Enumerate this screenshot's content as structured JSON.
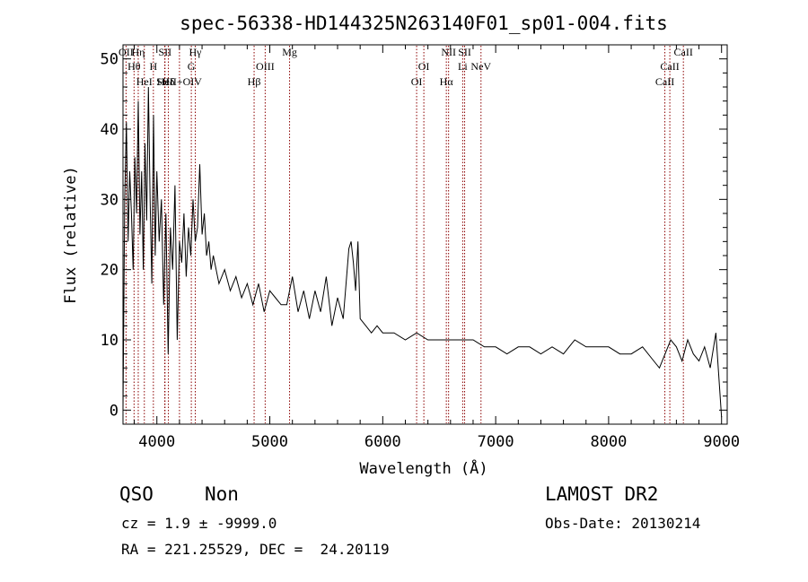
{
  "chart_data": {
    "type": "line",
    "title": "spec-56338-HD144325N263140F01_sp01-004.fits",
    "xlabel": "Wavelength (Å)",
    "ylabel": "Flux (relative)",
    "xlim": [
      3700,
      9050
    ],
    "ylim": [
      -2,
      52
    ],
    "xticks": [
      4000,
      5000,
      6000,
      7000,
      8000,
      9000
    ],
    "yticks": [
      0,
      10,
      20,
      30,
      40,
      50
    ],
    "grid": false,
    "line_color": "#000000",
    "line_marker_color": "#8b0000",
    "lines": [
      {
        "name": "OII",
        "wavelength": 3727,
        "row": 0
      },
      {
        "name": "Hη",
        "wavelength": 3835,
        "row": 0
      },
      {
        "name": "Hθ",
        "wavelength": 3798,
        "row": 1
      },
      {
        "name": "HeI",
        "wavelength": 3889,
        "row": 2
      },
      {
        "name": "SII",
        "wavelength": 4072,
        "row": 0
      },
      {
        "name": "H",
        "wavelength": 3969,
        "row": 1
      },
      {
        "name": "SIII",
        "wavelength": 4069,
        "row": 2
      },
      {
        "name": "Hδ",
        "wavelength": 4102,
        "row": 2
      },
      {
        "name": "Hγ",
        "wavelength": 4340,
        "row": 0
      },
      {
        "name": "G",
        "wavelength": 4305,
        "row": 1
      },
      {
        "name": "HeII+OIV",
        "wavelength": 4200,
        "row": 2
      },
      {
        "name": "OIII",
        "wavelength": 4959,
        "row": 1
      },
      {
        "name": "Hβ",
        "wavelength": 4861,
        "row": 2
      },
      {
        "name": "Mg",
        "wavelength": 5175,
        "row": 0
      },
      {
        "name": "OI",
        "wavelength": 6364,
        "row": 1
      },
      {
        "name": "OI",
        "wavelength": 6300,
        "row": 2
      },
      {
        "name": "NII",
        "wavelength": 6583,
        "row": 0
      },
      {
        "name": "Hα",
        "wavelength": 6563,
        "row": 2
      },
      {
        "name": "SII",
        "wavelength": 6725,
        "row": 0
      },
      {
        "name": "Li",
        "wavelength": 6708,
        "row": 1
      },
      {
        "name": "NeV",
        "wavelength": 6870,
        "row": 1
      },
      {
        "name": "CaII",
        "wavelength": 8662,
        "row": 0
      },
      {
        "name": "CaII",
        "wavelength": 8542,
        "row": 1
      },
      {
        "name": "CaII",
        "wavelength": 8498,
        "row": 2
      }
    ],
    "series": [
      {
        "x": [
          3700,
          3715,
          3730,
          3745,
          3760,
          3775,
          3790,
          3805,
          3820,
          3835,
          3850,
          3865,
          3880,
          3895,
          3910,
          3925,
          3940,
          3955,
          3970,
          3985,
          4000,
          4020,
          4040,
          4060,
          4080,
          4100,
          4120,
          4140,
          4160,
          4180,
          4200,
          4220,
          4240,
          4260,
          4280,
          4300,
          4320,
          4340,
          4360,
          4380,
          4400,
          4420,
          4440,
          4460,
          4480,
          4500,
          4550,
          4600,
          4650,
          4700,
          4750,
          4800,
          4850,
          4900,
          4950,
          5000,
          5050,
          5100,
          5150,
          5200,
          5250,
          5300,
          5350,
          5400,
          5450,
          5500,
          5550,
          5600,
          5650,
          5700,
          5720,
          5740,
          5760,
          5780,
          5800,
          5850,
          5900,
          5950,
          6000,
          6100,
          6200,
          6300,
          6400,
          6500,
          6600,
          6700,
          6800,
          6900,
          7000,
          7100,
          7200,
          7300,
          7400,
          7500,
          7600,
          7700,
          7800,
          7900,
          8000,
          8100,
          8200,
          8300,
          8400,
          8450,
          8500,
          8550,
          8600,
          8650,
          8700,
          8750,
          8800,
          8850,
          8900,
          8950,
          9000
        ],
        "y": [
          0,
          30,
          41,
          24,
          34,
          28,
          20,
          36,
          28,
          44,
          25,
          34,
          20,
          38,
          27,
          46,
          30,
          18,
          42,
          22,
          34,
          24,
          30,
          15,
          28,
          8,
          26,
          20,
          32,
          10,
          24,
          21,
          28,
          19,
          26,
          22,
          30,
          24,
          26,
          35,
          25,
          28,
          22,
          24,
          20,
          22,
          18,
          20,
          17,
          19,
          16,
          18,
          15,
          18,
          14,
          17,
          16,
          15,
          15,
          19,
          14,
          17,
          13,
          17,
          14,
          19,
          12,
          16,
          13,
          23,
          24,
          21,
          17,
          24,
          13,
          12,
          11,
          12,
          11,
          11,
          10,
          11,
          10,
          10,
          10,
          10,
          10,
          9,
          9,
          8,
          9,
          9,
          8,
          9,
          8,
          10,
          9,
          9,
          9,
          8,
          8,
          9,
          7,
          6,
          8,
          10,
          9,
          7,
          10,
          8,
          7,
          9,
          6,
          11,
          -1
        ]
      }
    ]
  },
  "footer": {
    "class_label": "QSO",
    "subclass_label": "Non",
    "survey_label": "LAMOST DR2",
    "redshift_text": "cz = 1.9 ± -9999.0",
    "obs_date_text": "Obs-Date: 20130214",
    "coords_text": "RA = 221.25529, DEC =  24.20119"
  }
}
